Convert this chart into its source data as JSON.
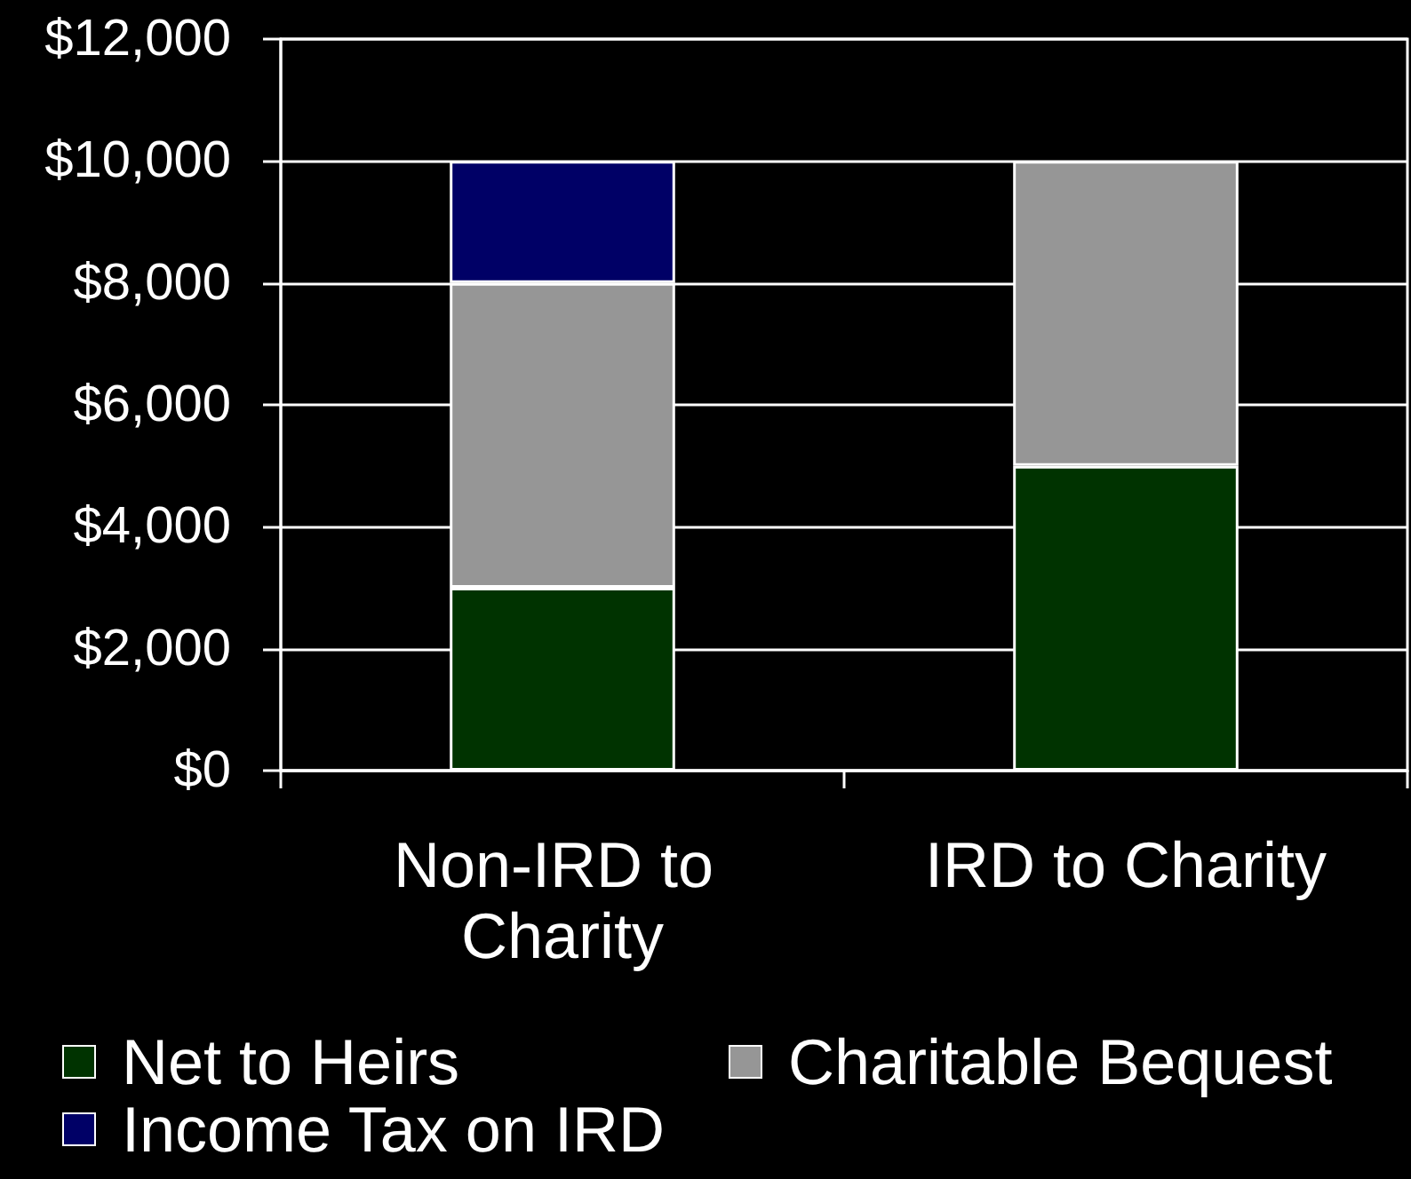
{
  "chart_data": {
    "type": "bar",
    "stacked": true,
    "categories": [
      "Non-IRD to Charity",
      "IRD to Charity"
    ],
    "series": [
      {
        "name": "Net to Heirs",
        "color": "#003300",
        "values": [
          3000,
          5000
        ]
      },
      {
        "name": "Charitable Bequest",
        "color": "#969696",
        "values": [
          5000,
          5000
        ]
      },
      {
        "name": "Income Tax on IRD",
        "color": "#000066",
        "values": [
          2000,
          null
        ]
      }
    ],
    "ylim": [
      0,
      12000
    ],
    "yticks": [
      {
        "value": 0,
        "label": "$0"
      },
      {
        "value": 2000,
        "label": "$2,000"
      },
      {
        "value": 4000,
        "label": "$4,000"
      },
      {
        "value": 6000,
        "label": "$6,000"
      },
      {
        "value": 8000,
        "label": "$8,000"
      },
      {
        "value": 10000,
        "label": "$10,000"
      },
      {
        "value": 12000,
        "label": "$12,000"
      }
    ],
    "grid": "y",
    "legend": "bottom"
  }
}
